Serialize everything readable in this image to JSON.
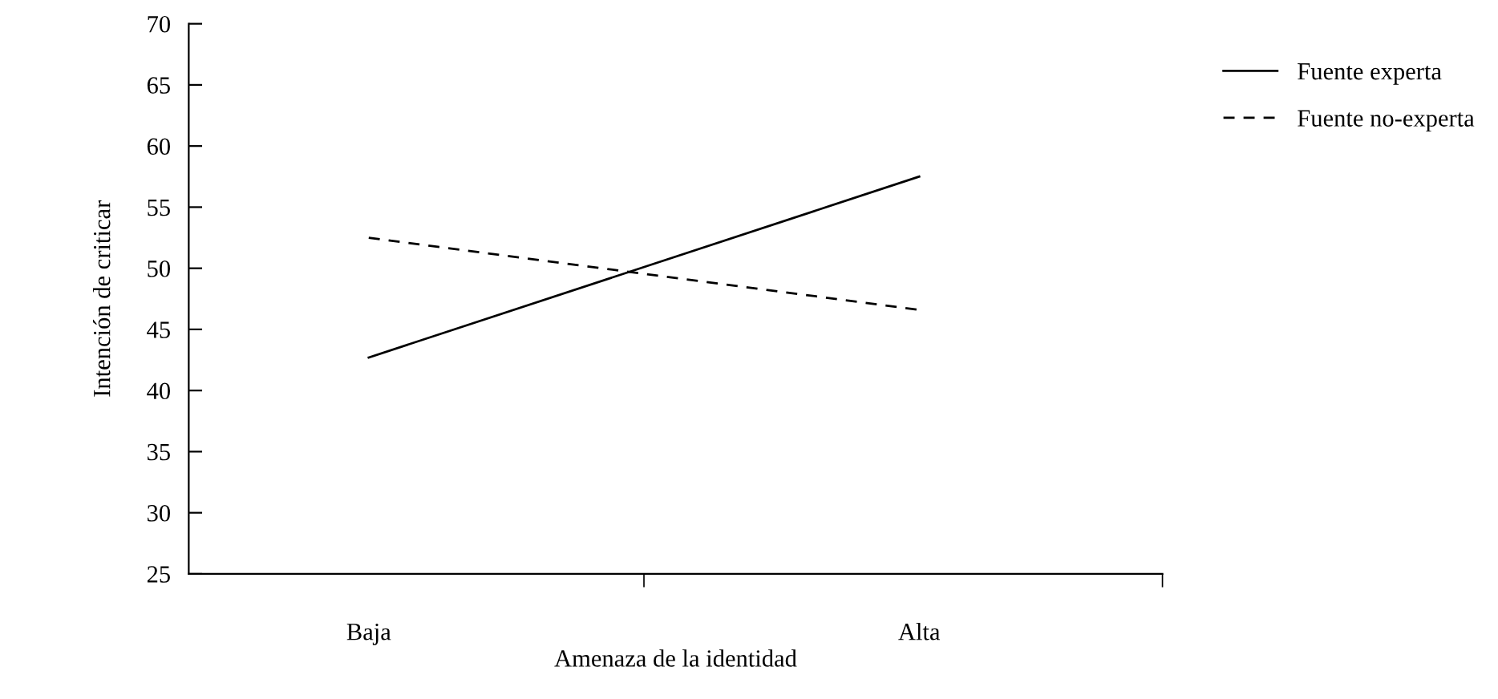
{
  "chart_data": {
    "type": "line",
    "xlabel": "Amenaza de la identidad",
    "ylabel": "Intención de criticar",
    "categories": [
      "Baja",
      "Alta"
    ],
    "series": [
      {
        "name": "Fuente experta",
        "color": "#000000",
        "line_style": "solid",
        "values": [
          42.7,
          57.5
        ]
      },
      {
        "name": "Fuente no-experta",
        "color": "#000000",
        "line_style": "dashed",
        "values": [
          52.5,
          46.6
        ]
      }
    ],
    "ylim": [
      25,
      70
    ],
    "yticks": [
      25,
      30,
      35,
      40,
      45,
      50,
      55,
      60,
      65,
      70
    ],
    "grid": false,
    "legend": "top right",
    "marker": "none"
  }
}
